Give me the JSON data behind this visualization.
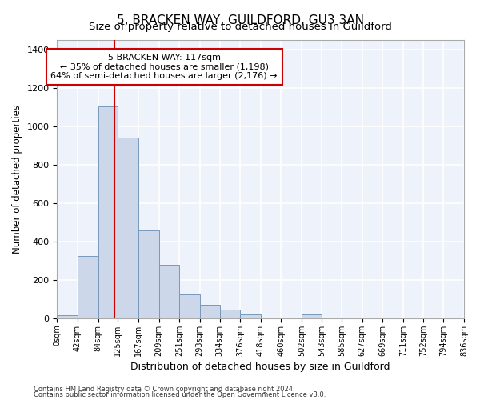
{
  "title": "5, BRACKEN WAY, GUILDFORD, GU3 3AN",
  "subtitle": "Size of property relative to detached houses in Guildford",
  "xlabel": "Distribution of detached houses by size in Guildford",
  "ylabel": "Number of detached properties",
  "bar_color": "#ccd8ea",
  "bar_edge_color": "#7799bb",
  "background_color": "#eef2fa",
  "grid_color": "#ffffff",
  "bin_edges": [
    0,
    42,
    84,
    125,
    167,
    209,
    251,
    293,
    334,
    376,
    418,
    460,
    502,
    543,
    585,
    627,
    669,
    711,
    752,
    794,
    836
  ],
  "bar_heights": [
    18,
    325,
    1105,
    940,
    460,
    280,
    125,
    70,
    45,
    20,
    0,
    0,
    20,
    0,
    0,
    0,
    0,
    0,
    0,
    0
  ],
  "property_size": 117,
  "red_line_color": "#cc0000",
  "annotation_line1": "5 BRACKEN WAY: 117sqm",
  "annotation_line2": "← 35% of detached houses are smaller (1,198)",
  "annotation_line3": "64% of semi-detached houses are larger (2,176) →",
  "annotation_box_color": "#cc0000",
  "footnote1": "Contains HM Land Registry data © Crown copyright and database right 2024.",
  "footnote2": "Contains public sector information licensed under the Open Government Licence v3.0.",
  "ylim": [
    0,
    1450
  ],
  "title_fontsize": 11,
  "subtitle_fontsize": 9.5,
  "xlabel_fontsize": 9,
  "ylabel_fontsize": 8.5,
  "tick_labels": [
    "0sqm",
    "42sqm",
    "84sqm",
    "125sqm",
    "167sqm",
    "209sqm",
    "251sqm",
    "293sqm",
    "334sqm",
    "376sqm",
    "418sqm",
    "460sqm",
    "502sqm",
    "543sqm",
    "585sqm",
    "627sqm",
    "669sqm",
    "711sqm",
    "752sqm",
    "794sqm",
    "836sqm"
  ]
}
